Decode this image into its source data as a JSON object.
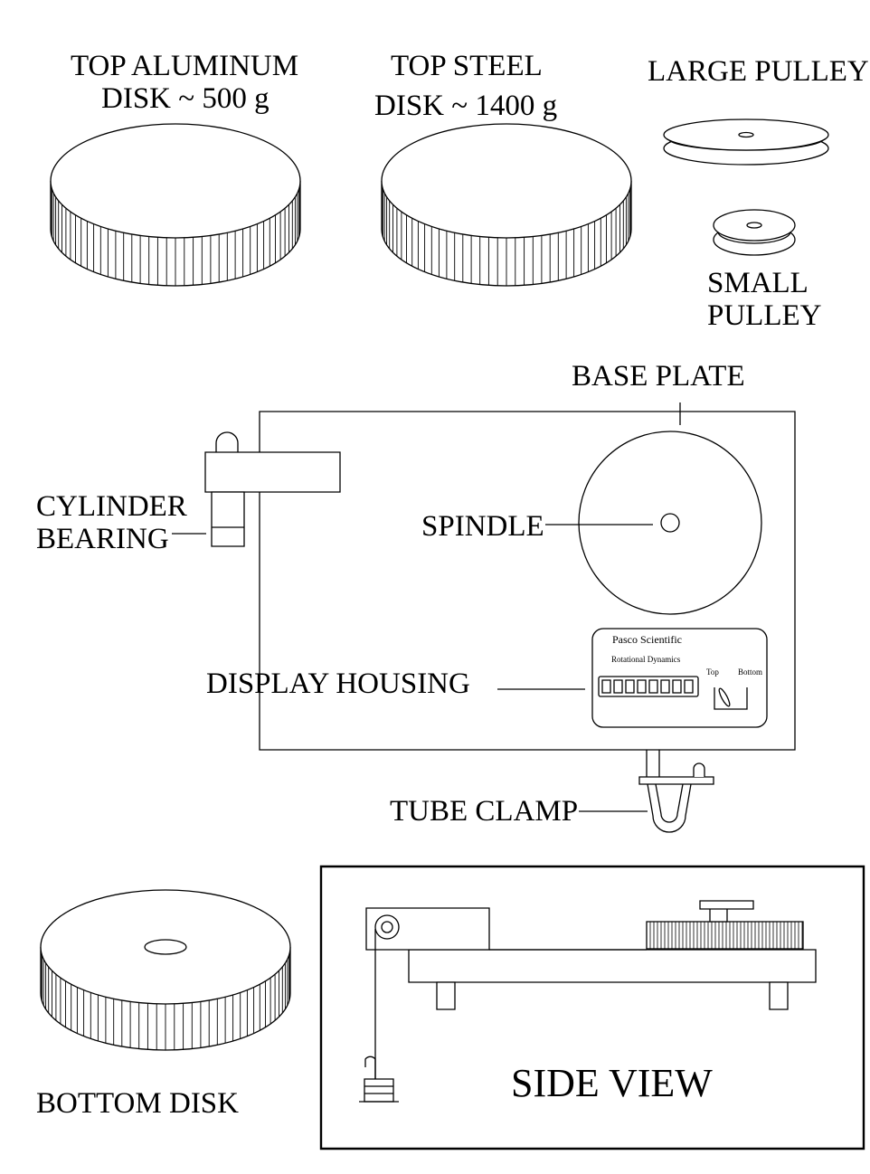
{
  "labels": {
    "top_aluminum_line1": "TOP  ALUMINUM",
    "top_aluminum_line2": "DISK   ~ 500 g",
    "top_steel_line1": "TOP  STEEL",
    "top_steel_line2": "DISK  ~ 1400 g",
    "large_pulley": "LARGE PULLEY",
    "small_pulley_line1": "SMALL",
    "small_pulley_line2": "PULLEY",
    "base_plate": "BASE  PLATE",
    "cylinder_line1": "CYLINDER",
    "cylinder_line2": "BEARING",
    "spindle": "SPINDLE",
    "display_housing": "DISPLAY  HOUSING",
    "tube_clamp": "TUBE  CLAMP",
    "bottom_disk": "BOTTOM DISK",
    "side_view": "SIDE VIEW"
  },
  "display_panel": {
    "brand": "Pasco Scientific",
    "model": "Rotational Dynamics",
    "switch_top": "Top",
    "switch_bottom": "Bottom"
  },
  "colors": {
    "ink": "#000000",
    "paper": "#ffffff"
  }
}
